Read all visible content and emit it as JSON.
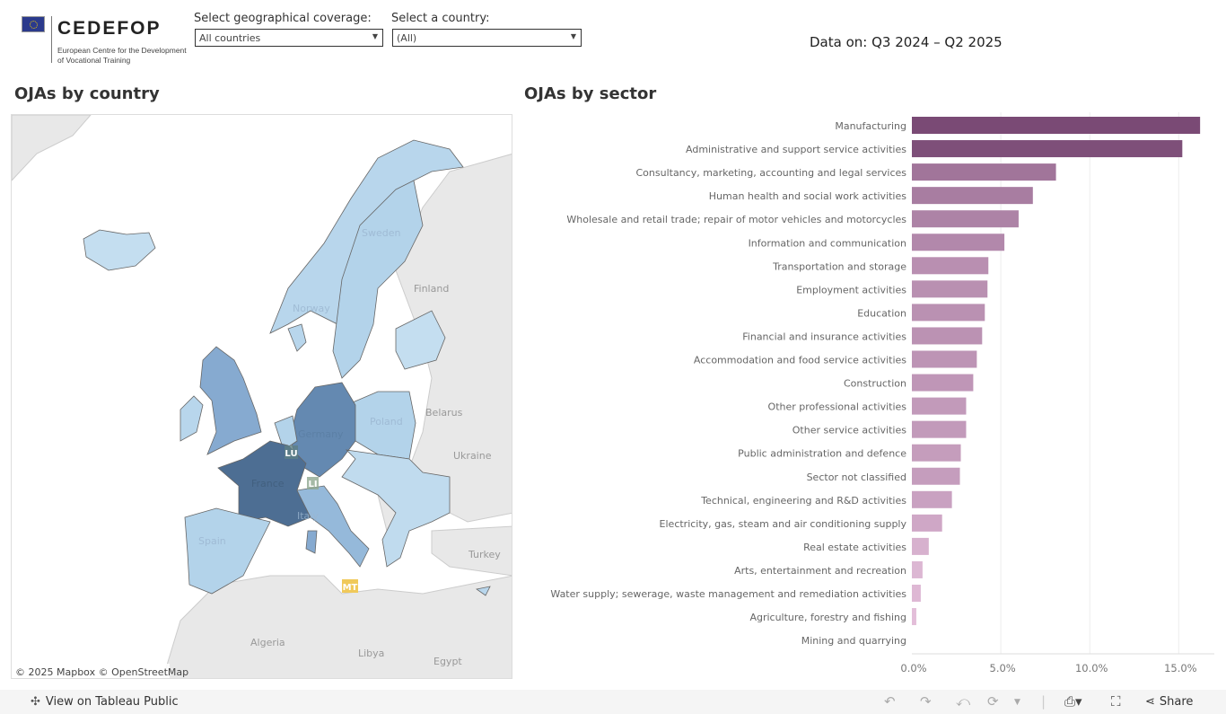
{
  "header": {
    "logo": {
      "name": "CEDEFOP",
      "subtitle_line1": "European Centre for the Development",
      "subtitle_line2": "of Vocational Training"
    },
    "filters": [
      {
        "label": "Select geographical coverage:",
        "value": "All countries"
      },
      {
        "label": "Select a country:",
        "value": "(All)"
      }
    ],
    "data_on": "Data on: Q3 2024 – Q2 2025"
  },
  "map": {
    "title": "OJAs by country",
    "labels": {
      "sweden": "Sweden",
      "finland": "Finland",
      "norway": "Norway",
      "belarus": "Belarus",
      "poland": "Poland",
      "germany": "Germany",
      "ukraine": "Ukraine",
      "france": "France",
      "italy": "Italy",
      "spain": "Spain",
      "turkey": "Turkey",
      "algeria": "Algeria",
      "libya": "Libya",
      "egypt": "Egypt"
    },
    "badges": {
      "lu": "LU",
      "li": "LI",
      "mt": "MT"
    },
    "attribution": "© 2025 Mapbox  © OpenStreetMap",
    "colors": {
      "dark": "#4d6e93",
      "mid": "#6489b1",
      "medium": "#86aad0",
      "light": "#b3d3ea",
      "lighter": "#c4def0",
      "non_eu": "#e8e8e8",
      "badge_mt": "#f0c95a"
    }
  },
  "chart_data": {
    "type": "bar",
    "orientation": "horizontal",
    "title": "OJAs by sector",
    "categories": [
      "Manufacturing",
      "Administrative and support service activities",
      "Consultancy, marketing, accounting and legal services",
      "Human health and social work activities",
      "Wholesale and retail trade; repair of motor vehicles and motorcycles",
      "Information and communication",
      "Transportation and storage",
      "Employment activities",
      "Education",
      "Financial and insurance activities",
      "Accommodation and food service activities",
      "Construction",
      "Other professional activities",
      "Other service activities",
      "Public administration and defence",
      "Sector not classified",
      "Technical, engineering and R&D activities",
      "Electricity, gas, steam and air conditioning supply",
      "Real estate activities",
      "Arts, entertainment and recreation",
      "Water supply; sewerage, waste management and remediation activities",
      "Agriculture, forestry and fishing",
      "Mining and quarrying"
    ],
    "values": [
      16.2,
      15.2,
      8.1,
      6.8,
      6.0,
      5.2,
      4.3,
      4.25,
      4.1,
      3.95,
      3.65,
      3.45,
      3.05,
      3.05,
      2.75,
      2.7,
      2.25,
      1.7,
      0.95,
      0.6,
      0.5,
      0.25,
      0.0
    ],
    "xlim": [
      0,
      17
    ],
    "ticks": [
      "0.0%",
      "5.0%",
      "10.0%",
      "15.0%"
    ],
    "tick_values": [
      0,
      5,
      10,
      15
    ],
    "grid": true,
    "color_high": "#7a4a75",
    "color_low": "#ecc8e2"
  },
  "footer": {
    "view_label": "View on Tableau Public",
    "share_label": "Share"
  }
}
